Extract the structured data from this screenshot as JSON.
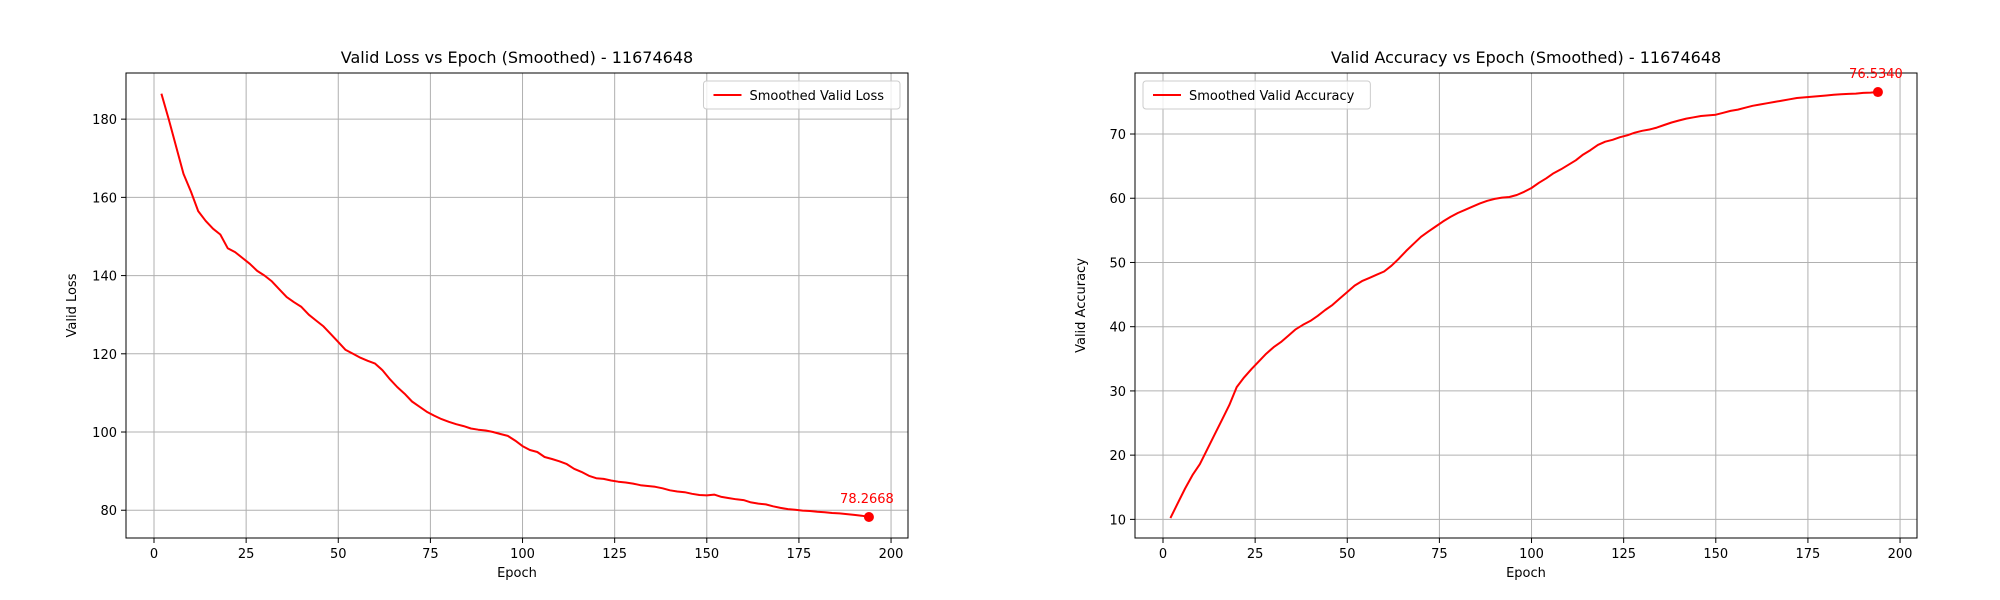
{
  "chart_data": [
    {
      "type": "line",
      "title": "Valid Loss vs Epoch (Smoothed) - 11674648",
      "xlabel": "Epoch",
      "ylabel": "Valid Loss",
      "xlim": [
        -7.6,
        204.6
      ],
      "ylim": [
        72.9,
        191.8
      ],
      "xticks": [
        0,
        25,
        50,
        75,
        100,
        125,
        150,
        175,
        200
      ],
      "yticks": [
        80,
        100,
        120,
        140,
        160,
        180
      ],
      "grid": true,
      "legend_position": "upper right",
      "series": [
        {
          "name": "Smoothed Valid Loss",
          "color": "#ff0000",
          "x": [
            2,
            4,
            6,
            8,
            10,
            12,
            14,
            16,
            18,
            20,
            22,
            24,
            26,
            28,
            30,
            32,
            34,
            36,
            38,
            40,
            42,
            44,
            46,
            48,
            50,
            52,
            54,
            56,
            58,
            60,
            62,
            64,
            66,
            68,
            70,
            72,
            74,
            76,
            78,
            80,
            82,
            84,
            86,
            88,
            90,
            92,
            94,
            96,
            98,
            100,
            102,
            104,
            106,
            108,
            110,
            112,
            114,
            116,
            118,
            120,
            122,
            124,
            126,
            128,
            130,
            132,
            134,
            136,
            138,
            140,
            142,
            144,
            146,
            148,
            150,
            152,
            154,
            156,
            158,
            160,
            162,
            164,
            166,
            168,
            170,
            172,
            174,
            176,
            178,
            180,
            182,
            184,
            186,
            188,
            190,
            192,
            194
          ],
          "y": [
            186.5,
            180,
            173,
            166,
            161.5,
            156.5,
            154,
            152,
            150.5,
            147,
            146,
            144.5,
            143,
            141.2,
            140,
            138.5,
            136.5,
            134.5,
            133.2,
            132,
            130,
            128.5,
            127,
            125,
            123,
            121,
            120,
            119,
            118.2,
            117.5,
            115.8,
            113.5,
            111.5,
            109.8,
            107.8,
            106.5,
            105.2,
            104.2,
            103.3,
            102.6,
            102,
            101.5,
            100.9,
            100.6,
            100.4,
            100,
            99.5,
            99,
            97.8,
            96.4,
            95.4,
            94.9,
            93.6,
            93.1,
            92.5,
            91.8,
            90.6,
            89.8,
            88.8,
            88.2,
            88,
            87.6,
            87.3,
            87.1,
            86.8,
            86.4,
            86.2,
            86,
            85.6,
            85.1,
            84.8,
            84.6,
            84.2,
            83.9,
            83.8,
            84,
            83.4,
            83.1,
            82.8,
            82.6,
            82,
            81.7,
            81.5,
            81,
            80.6,
            80.3,
            80.1,
            79.9,
            79.8,
            79.6,
            79.5,
            79.3,
            79.2,
            79,
            78.8,
            78.6,
            78.2668
          ]
        }
      ],
      "annotation": {
        "x": 194,
        "y": 78.2668,
        "text": "78.2668"
      }
    },
    {
      "type": "line",
      "title": "Valid Accuracy vs Epoch (Smoothed) - 11674648",
      "xlabel": "Epoch",
      "ylabel": "Valid Accuracy",
      "xlim": [
        -7.6,
        204.6
      ],
      "ylim": [
        7.1,
        79.5
      ],
      "xticks": [
        0,
        25,
        50,
        75,
        100,
        125,
        150,
        175,
        200
      ],
      "yticks": [
        10,
        20,
        30,
        40,
        50,
        60,
        70
      ],
      "grid": true,
      "legend_position": "upper left",
      "series": [
        {
          "name": "Smoothed Valid Accuracy",
          "color": "#ff0000",
          "x": [
            2,
            4,
            6,
            8,
            10,
            12,
            14,
            16,
            18,
            20,
            22,
            24,
            26,
            28,
            30,
            32,
            34,
            36,
            38,
            40,
            42,
            44,
            46,
            48,
            50,
            52,
            54,
            56,
            58,
            60,
            62,
            64,
            66,
            68,
            70,
            72,
            74,
            76,
            78,
            80,
            82,
            84,
            86,
            88,
            90,
            92,
            94,
            96,
            98,
            100,
            102,
            104,
            106,
            108,
            110,
            112,
            114,
            116,
            118,
            120,
            122,
            124,
            126,
            128,
            130,
            132,
            134,
            136,
            138,
            140,
            142,
            144,
            146,
            148,
            150,
            152,
            154,
            156,
            158,
            160,
            162,
            164,
            166,
            168,
            170,
            172,
            174,
            176,
            178,
            180,
            182,
            184,
            186,
            188,
            190,
            192,
            194
          ],
          "y": [
            10.2,
            12.5,
            14.8,
            16.9,
            18.6,
            20.9,
            23.2,
            25.5,
            27.8,
            30.6,
            32.1,
            33.4,
            34.6,
            35.8,
            36.8,
            37.6,
            38.6,
            39.6,
            40.3,
            40.9,
            41.7,
            42.6,
            43.4,
            44.4,
            45.4,
            46.4,
            47.1,
            47.6,
            48.1,
            48.6,
            49.5,
            50.6,
            51.8,
            52.9,
            54,
            54.8,
            55.6,
            56.4,
            57.1,
            57.7,
            58.2,
            58.7,
            59.2,
            59.6,
            59.9,
            60.1,
            60.2,
            60.5,
            61,
            61.6,
            62.4,
            63.1,
            63.9,
            64.5,
            65.2,
            65.9,
            66.8,
            67.5,
            68.3,
            68.8,
            69.1,
            69.5,
            69.8,
            70.2,
            70.5,
            70.7,
            71,
            71.4,
            71.8,
            72.1,
            72.4,
            72.6,
            72.8,
            72.9,
            73,
            73.3,
            73.6,
            73.8,
            74.1,
            74.4,
            74.6,
            74.8,
            75,
            75.2,
            75.4,
            75.6,
            75.7,
            75.8,
            75.9,
            76,
            76.1,
            76.2,
            76.25,
            76.3,
            76.4,
            76.45,
            76.534
          ]
        }
      ],
      "annotation": {
        "x": 194,
        "y": 76.534,
        "text": "76.5340"
      }
    }
  ]
}
